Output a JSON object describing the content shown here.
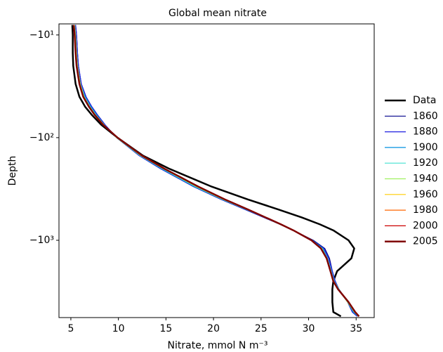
{
  "chart_data": {
    "type": "line",
    "title": "Global mean nitrate",
    "xlabel": "Nitrate, mmol N m⁻³",
    "ylabel": "Depth",
    "xlim": [
      3.75,
      36.9
    ],
    "xticks": [
      5,
      10,
      15,
      20,
      25,
      30,
      35
    ],
    "ylim": [
      -7.8,
      -5660
    ],
    "yscale": "log",
    "yticks": [
      {
        "value": -10,
        "label": "−10¹"
      },
      {
        "value": -100,
        "label": "−10²"
      },
      {
        "value": -1000,
        "label": "−10³"
      }
    ],
    "legend": "right",
    "y": [
      -8,
      -10,
      -15,
      -20,
      -30,
      -40,
      -50,
      -60,
      -75,
      -100,
      -150,
      -200,
      -300,
      -400,
      -500,
      -600,
      -700,
      -800,
      -1000,
      -1200,
      -1500,
      -2000,
      -2500,
      -3000,
      -4000,
      -5000,
      -5500
    ],
    "series": [
      {
        "name": "Data",
        "color": "#000000",
        "linewidth": 2.5,
        "values": [
          5.15,
          5.2,
          5.2,
          5.25,
          5.5,
          5.9,
          6.5,
          7.2,
          8.2,
          9.9,
          12.6,
          15.3,
          19.8,
          23.6,
          26.8,
          29.3,
          31.2,
          32.6,
          34.2,
          34.8,
          34.5,
          33.0,
          32.6,
          32.5,
          32.5,
          32.6,
          33.4
        ]
      },
      {
        "name": "1860",
        "color": "#00008b",
        "linewidth": 1.2,
        "values": [
          5.5,
          5.6,
          5.7,
          5.8,
          6.1,
          6.6,
          7.2,
          7.8,
          8.6,
          9.8,
          12.2,
          14.4,
          17.9,
          20.8,
          23.3,
          25.3,
          27.0,
          28.4,
          30.5,
          31.7,
          32.2,
          32.5,
          32.8,
          33.2,
          34.1,
          34.6,
          35.1
        ]
      },
      {
        "name": "1880",
        "color": "#2020e0",
        "linewidth": 1.2,
        "values": [
          5.5,
          5.6,
          5.7,
          5.8,
          6.1,
          6.6,
          7.2,
          7.8,
          8.6,
          9.8,
          12.2,
          14.4,
          17.9,
          20.8,
          23.3,
          25.3,
          27.0,
          28.4,
          30.4,
          31.6,
          32.1,
          32.5,
          32.8,
          33.2,
          34.1,
          34.6,
          35.1
        ]
      },
      {
        "name": "1900",
        "color": "#0090e0",
        "linewidth": 1.2,
        "values": [
          5.4,
          5.5,
          5.6,
          5.7,
          6.0,
          6.5,
          7.1,
          7.7,
          8.5,
          9.8,
          12.3,
          14.5,
          18.0,
          20.9,
          23.4,
          25.4,
          27.0,
          28.4,
          30.4,
          31.5,
          32.0,
          32.4,
          32.7,
          33.2,
          34.1,
          34.7,
          35.2
        ]
      },
      {
        "name": "1920",
        "color": "#40e0d0",
        "linewidth": 1.2,
        "values": [
          5.4,
          5.5,
          5.6,
          5.7,
          6.0,
          6.4,
          7.0,
          7.6,
          8.5,
          9.8,
          12.3,
          14.6,
          18.1,
          21.0,
          23.5,
          25.4,
          27.0,
          28.4,
          30.3,
          31.4,
          32.0,
          32.4,
          32.7,
          33.2,
          34.1,
          34.8,
          35.2
        ]
      },
      {
        "name": "1940",
        "color": "#a0f060",
        "linewidth": 1.2,
        "values": [
          5.4,
          5.5,
          5.6,
          5.7,
          6.0,
          6.4,
          7.0,
          7.6,
          8.5,
          9.8,
          12.4,
          14.7,
          18.2,
          21.0,
          23.5,
          25.4,
          27.0,
          28.4,
          30.3,
          31.4,
          31.9,
          32.3,
          32.6,
          33.1,
          34.1,
          34.8,
          35.3
        ]
      },
      {
        "name": "1960",
        "color": "#ffcc00",
        "linewidth": 1.2,
        "values": [
          5.3,
          5.4,
          5.5,
          5.6,
          5.9,
          6.3,
          6.9,
          7.5,
          8.4,
          9.9,
          12.4,
          14.7,
          18.3,
          21.1,
          23.5,
          25.5,
          27.1,
          28.4,
          30.3,
          31.3,
          31.9,
          32.3,
          32.6,
          33.1,
          34.2,
          34.9,
          35.3
        ]
      },
      {
        "name": "1980",
        "color": "#ff6600",
        "linewidth": 1.2,
        "values": [
          5.3,
          5.4,
          5.5,
          5.6,
          5.9,
          6.3,
          6.9,
          7.5,
          8.4,
          9.9,
          12.5,
          14.8,
          18.4,
          21.2,
          23.6,
          25.5,
          27.1,
          28.4,
          30.3,
          31.3,
          31.9,
          32.3,
          32.6,
          33.1,
          34.2,
          34.9,
          35.3
        ]
      },
      {
        "name": "2000",
        "color": "#cc0000",
        "linewidth": 1.2,
        "values": [
          5.3,
          5.4,
          5.5,
          5.6,
          5.9,
          6.3,
          6.9,
          7.5,
          8.4,
          9.9,
          12.5,
          14.8,
          18.4,
          21.2,
          23.6,
          25.5,
          27.1,
          28.4,
          30.3,
          31.3,
          31.9,
          32.3,
          32.6,
          33.1,
          34.2,
          34.9,
          35.3
        ]
      },
      {
        "name": "2005",
        "color": "#800000",
        "linewidth": 2.5,
        "values": [
          5.3,
          5.4,
          5.5,
          5.6,
          5.9,
          6.3,
          6.9,
          7.5,
          8.4,
          9.9,
          12.5,
          14.8,
          18.4,
          21.2,
          23.6,
          25.5,
          27.1,
          28.4,
          30.3,
          31.3,
          31.9,
          32.3,
          32.6,
          33.1,
          34.2,
          34.9,
          35.3
        ]
      }
    ]
  }
}
